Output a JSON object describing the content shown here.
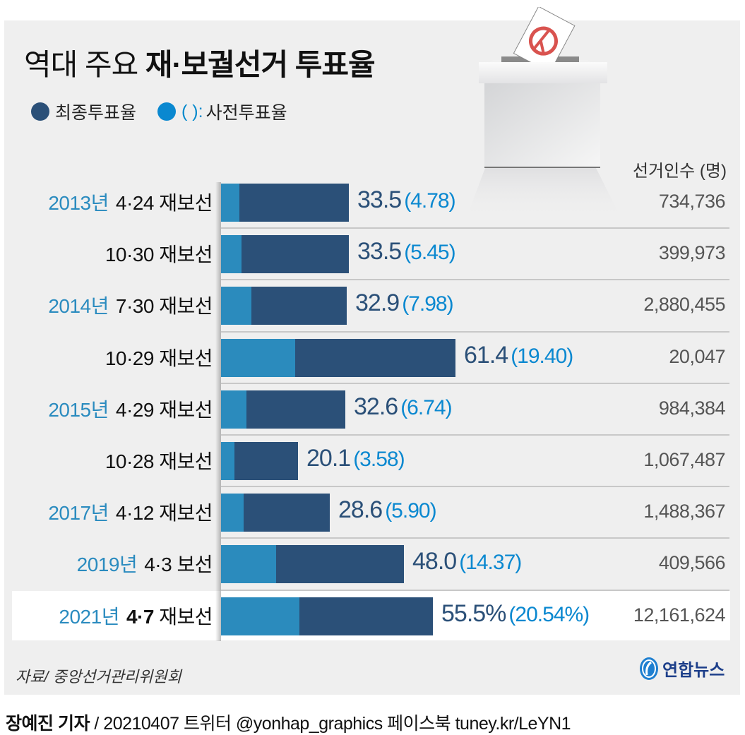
{
  "header": {
    "title_light": "역대 주요",
    "title_bold": "재·보궐선거 투표율",
    "legend": [
      {
        "label": "최종투표율",
        "color": "#2b5078"
      },
      {
        "paren": "(  ):",
        "label": "사전투표율",
        "color": "#0a88d0"
      }
    ]
  },
  "column_header": "선거인수 (명)",
  "chart_data": {
    "type": "bar",
    "orientation": "horizontal",
    "stacked_overlay": true,
    "title": "역대 주요 재·보궐선거 투표율",
    "xlim": [
      0,
      70
    ],
    "series": [
      {
        "name": "최종투표율",
        "color": "#2b5078",
        "values": [
          33.5,
          33.5,
          32.9,
          61.4,
          32.6,
          20.1,
          28.6,
          48.0,
          55.5
        ]
      },
      {
        "name": "사전투표율",
        "color": "#2b8bbd",
        "values": [
          4.78,
          5.45,
          7.98,
          19.4,
          6.74,
          3.58,
          5.9,
          14.37,
          20.54
        ]
      }
    ],
    "rows": [
      {
        "year": "2013년",
        "date": "4·24",
        "type": "재보선",
        "final": 33.5,
        "final_label": "33.5",
        "early": 4.78,
        "early_label": "(4.78)",
        "voters": "734,736"
      },
      {
        "year": "",
        "date": "10·30",
        "type": "재보선",
        "final": 33.5,
        "final_label": "33.5",
        "early": 5.45,
        "early_label": "(5.45)",
        "voters": "399,973"
      },
      {
        "year": "2014년",
        "date": "7·30",
        "type": "재보선",
        "final": 32.9,
        "final_label": "32.9",
        "early": 7.98,
        "early_label": "(7.98)",
        "voters": "2,880,455"
      },
      {
        "year": "",
        "date": "10·29",
        "type": "재보선",
        "final": 61.4,
        "final_label": "61.4",
        "early": 19.4,
        "early_label": "(19.40)",
        "voters": "20,047"
      },
      {
        "year": "2015년",
        "date": "4·29",
        "type": "재보선",
        "final": 32.6,
        "final_label": "32.6",
        "early": 6.74,
        "early_label": "(6.74)",
        "voters": "984,384"
      },
      {
        "year": "",
        "date": "10·28",
        "type": "재보선",
        "final": 20.1,
        "final_label": "20.1",
        "early": 3.58,
        "early_label": "(3.58)",
        "voters": "1,067,487"
      },
      {
        "year": "2017년",
        "date": "4·12",
        "type": "재보선",
        "final": 28.6,
        "final_label": "28.6",
        "early": 5.9,
        "early_label": "(5.90)",
        "voters": "1,488,367"
      },
      {
        "year": "2019년",
        "date": "4·3",
        "type": "보선",
        "final": 48.0,
        "final_label": "48.0",
        "early": 14.37,
        "early_label": "(14.37)",
        "voters": "409,566"
      },
      {
        "year": "2021년",
        "date": "4·7",
        "type": "재보선",
        "final": 55.5,
        "final_label": "55.5%",
        "early": 20.54,
        "early_label": "(20.54%)",
        "voters": "12,161,624",
        "highlight": true
      }
    ]
  },
  "footer": {
    "source": "자료/ 중앙선거관리위원회",
    "logo_text": "연합뉴스",
    "credit_name": "장예진 기자",
    "credit_rest": " / 20210407 트위터 @yonhap_graphics  페이스북 tuney.kr/LeYN1"
  }
}
